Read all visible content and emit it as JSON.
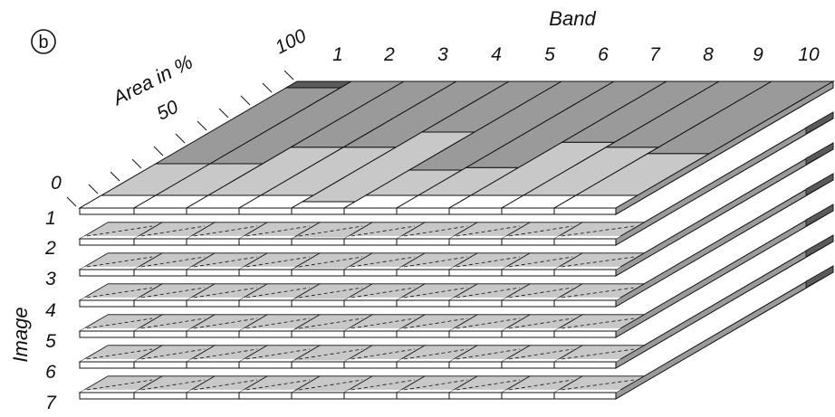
{
  "panel_label": "b",
  "band_axis": {
    "title": "Band",
    "labels": [
      "1",
      "2",
      "3",
      "4",
      "5",
      "6",
      "7",
      "8",
      "9",
      "10"
    ]
  },
  "area_axis": {
    "title": "Area in %",
    "ticks": [
      "0",
      "50",
      "100"
    ]
  },
  "image_axis": {
    "title": "Image",
    "labels": [
      "1",
      "2",
      "3",
      "4",
      "5",
      "6",
      "7"
    ]
  },
  "colors": {
    "light": "#c8c8c8",
    "mid": "#9a9a9a",
    "dark": "#5a5a5a",
    "white": "#ffffff",
    "stroke": "#111111"
  },
  "bands": [
    {
      "band": "1",
      "white_pct": 10,
      "light_pct": 25,
      "mid_pct": 60,
      "dark_pct": 5
    },
    {
      "band": "2",
      "white_pct": 10,
      "light_pct": 25,
      "mid_pct": 65,
      "dark_pct": 0
    },
    {
      "band": "3",
      "white_pct": 10,
      "light_pct": 38,
      "mid_pct": 52,
      "dark_pct": 0
    },
    {
      "band": "4",
      "white_pct": 10,
      "light_pct": 38,
      "mid_pct": 52,
      "dark_pct": 0
    },
    {
      "band": "5",
      "white_pct": 5,
      "light_pct": 55,
      "mid_pct": 40,
      "dark_pct": 0
    },
    {
      "band": "6",
      "white_pct": 10,
      "light_pct": 20,
      "mid_pct": 70,
      "dark_pct": 0
    },
    {
      "band": "7",
      "white_pct": 10,
      "light_pct": 22,
      "mid_pct": 68,
      "dark_pct": 0
    },
    {
      "band": "8",
      "white_pct": 10,
      "light_pct": 42,
      "mid_pct": 48,
      "dark_pct": 0
    },
    {
      "band": "9",
      "white_pct": 10,
      "light_pct": 38,
      "mid_pct": 52,
      "dark_pct": 0
    },
    {
      "band": "10",
      "white_pct": 10,
      "light_pct": 33,
      "mid_pct": 57,
      "dark_pct": 0
    }
  ]
}
